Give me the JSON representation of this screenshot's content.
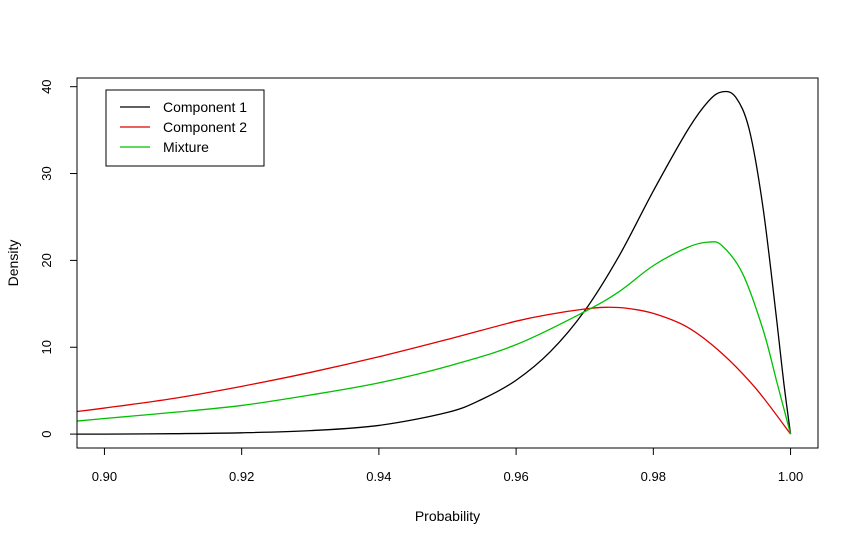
{
  "chart_data": {
    "type": "line",
    "title": "",
    "xlabel": "Probability",
    "ylabel": "Density",
    "xlim": [
      0.896,
      1.004
    ],
    "ylim": [
      -1.6,
      41.0
    ],
    "xticks": [
      0.9,
      0.92,
      0.94,
      0.96,
      0.98,
      1.0
    ],
    "xtick_labels": [
      "0.90",
      "0.92",
      "0.94",
      "0.96",
      "0.98",
      "1.00"
    ],
    "yticks": [
      0,
      10,
      20,
      30,
      40
    ],
    "ytick_labels": [
      "0",
      "10",
      "20",
      "30",
      "40"
    ],
    "grid": false,
    "legend_position": "top-left",
    "series": [
      {
        "name": "Component 1",
        "color": "#000000",
        "x": [
          0.896,
          0.9,
          0.91,
          0.92,
          0.93,
          0.94,
          0.95,
          0.955,
          0.96,
          0.965,
          0.97,
          0.975,
          0.98,
          0.985,
          0.988,
          0.99,
          0.992,
          0.994,
          0.996,
          0.998,
          0.999,
          1.0
        ],
        "y": [
          0.0,
          0.0,
          0.05,
          0.15,
          0.4,
          1.0,
          2.5,
          4.0,
          6.2,
          9.5,
          14.2,
          20.5,
          28.0,
          35.0,
          38.3,
          39.4,
          38.8,
          35.0,
          26.0,
          13.0,
          6.0,
          0.0
        ]
      },
      {
        "name": "Component 2",
        "color": "#e00000",
        "x": [
          0.896,
          0.9,
          0.91,
          0.92,
          0.93,
          0.94,
          0.95,
          0.96,
          0.965,
          0.97,
          0.973,
          0.976,
          0.98,
          0.985,
          0.99,
          0.995,
          1.0
        ],
        "y": [
          2.6,
          3.0,
          4.1,
          5.5,
          7.1,
          8.9,
          10.9,
          13.0,
          13.8,
          14.4,
          14.6,
          14.5,
          13.9,
          12.3,
          9.3,
          5.2,
          0.0
        ]
      },
      {
        "name": "Mixture",
        "color": "#00c000",
        "x": [
          0.896,
          0.9,
          0.91,
          0.92,
          0.93,
          0.94,
          0.95,
          0.96,
          0.97,
          0.975,
          0.98,
          0.985,
          0.988,
          0.99,
          0.993,
          0.996,
          0.998,
          1.0
        ],
        "y": [
          1.5,
          1.8,
          2.5,
          3.3,
          4.5,
          5.9,
          7.8,
          10.3,
          14.1,
          16.4,
          19.4,
          21.5,
          22.1,
          21.7,
          18.5,
          12.0,
          6.0,
          0.0
        ]
      }
    ]
  }
}
